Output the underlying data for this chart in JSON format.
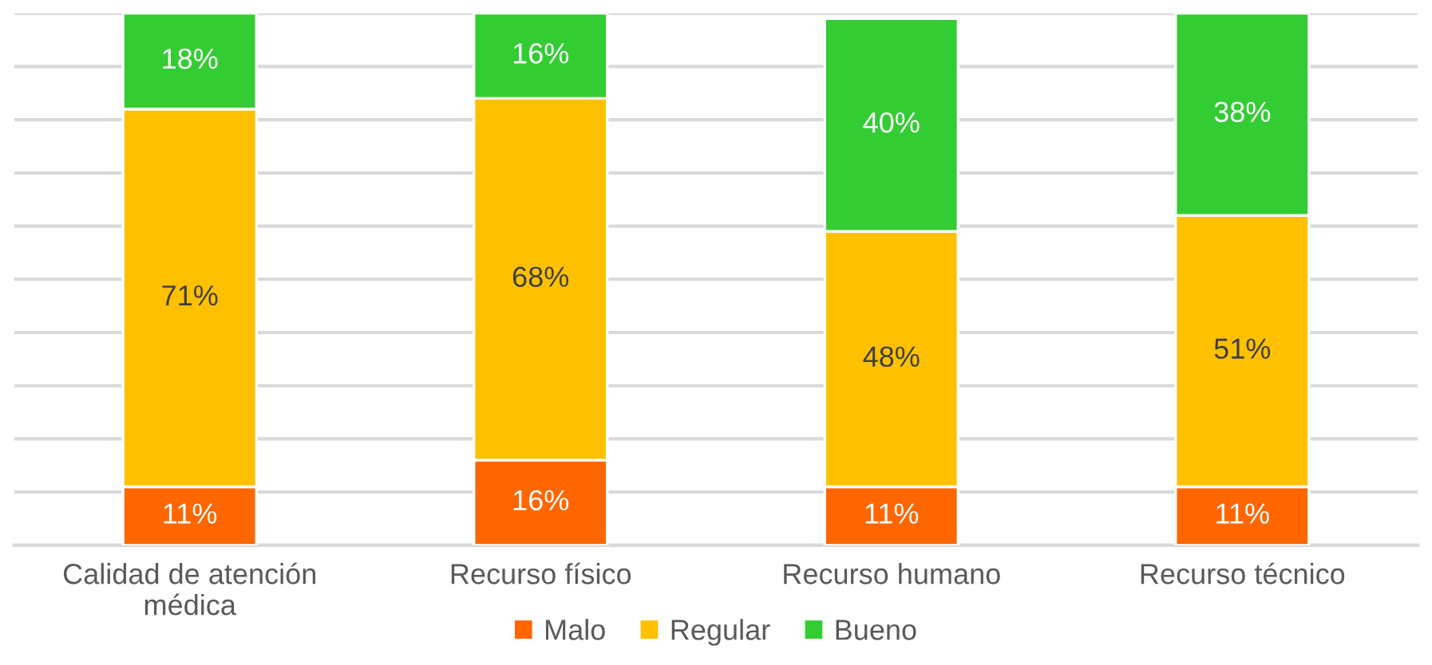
{
  "chart_data": {
    "type": "bar",
    "stacked": true,
    "categories": [
      "Calidad de atención\nmédica",
      "Recurso físico",
      "Recurso humano",
      "Recurso técnico"
    ],
    "series": [
      {
        "name": "Malo",
        "color": "#ff6600",
        "values": [
          11,
          16,
          11,
          11
        ],
        "value_labels": [
          "11%",
          "16%",
          "11%",
          "11%"
        ]
      },
      {
        "name": "Regular",
        "color": "#ffc000",
        "values": [
          71,
          68,
          48,
          51
        ],
        "value_labels": [
          "71%",
          "68%",
          "48%",
          "51%"
        ]
      },
      {
        "name": "Bueno",
        "color": "#33cc33",
        "values": [
          18,
          16,
          40,
          38
        ],
        "value_labels": [
          "18%",
          "16%",
          "40%",
          "38%"
        ]
      }
    ],
    "ylim": [
      0,
      100
    ],
    "yticks": [
      {
        "value": 0,
        "label": null
      },
      {
        "value": 10,
        "label": null
      },
      {
        "value": 20,
        "label": null
      },
      {
        "value": 30,
        "label": null
      },
      {
        "value": 40,
        "label": null
      },
      {
        "value": 50,
        "label": null
      },
      {
        "value": 60,
        "label": null
      },
      {
        "value": 70,
        "label": null
      },
      {
        "value": 80,
        "label": null
      },
      {
        "value": 90,
        "label": null
      },
      {
        "value": 100,
        "label": null
      }
    ],
    "tick_labels": "x",
    "grid": "y",
    "legend": "bottom"
  }
}
